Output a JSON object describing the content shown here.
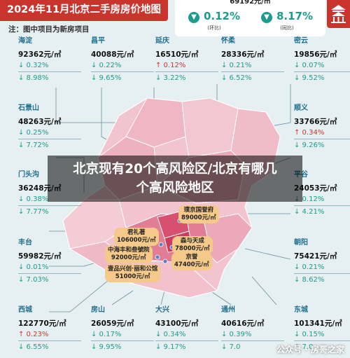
{
  "header": {
    "title": "2024年11月北京二手房房价地图",
    "note": "注：图中项目为新房项目"
  },
  "summary": {
    "price_partial": "69192元/㎡",
    "mom": {
      "value": "0.12%",
      "caption": "(环比)"
    },
    "yoy": {
      "value": "8.17%",
      "caption": "(同比)"
    }
  },
  "districts": {
    "haidian": {
      "name": "海淀",
      "price": "92362元/㎡",
      "mom": "↓ 0.32%",
      "yoy": "↓ 8.98%"
    },
    "changping": {
      "name": "昌平",
      "price": "40088元/㎡",
      "mom": "↓ 0.22%",
      "yoy": "↓ 9.65%"
    },
    "yanqing": {
      "name": "延庆",
      "price": "16510元/㎡",
      "mom": "↑ 0.12%",
      "yoy": "↓ 3.22%"
    },
    "huairou": {
      "name": "怀柔",
      "price": "28336元/㎡",
      "mom": "↓ 0.21%",
      "yoy": "↓ 6.52%"
    },
    "miyun": {
      "name": "密云",
      "price": "19856元/㎡",
      "mom": "↓ 0.07%",
      "yoy": "↓ 9.52%"
    },
    "shijingshan": {
      "name": "石景山",
      "price": "48263元/㎡",
      "mom": "↓ 0.25%",
      "yoy": "↓ 7.72%"
    },
    "shunyi": {
      "name": "顺义",
      "price": "33766元/㎡",
      "mom": "↑ 0.34%",
      "yoy": "↓ 9.26%"
    },
    "mentougou": {
      "name": "门头沟",
      "price": "36248元/㎡",
      "mom": "↓ 0.38%",
      "yoy": "↓ 7.77%"
    },
    "pinggu": {
      "name": "平谷",
      "price": "24053元/㎡",
      "mom": "↓ 0.12%",
      "yoy": "↓ 4.21%"
    },
    "fengtai": {
      "name": "丰台",
      "price": "59982元/㎡",
      "mom": "↓ 0.01%",
      "yoy": "↓ 7.03%"
    },
    "chaoyang": {
      "name": "朝阳",
      "price": "75421元/㎡",
      "mom": "↓ 0.21%",
      "yoy": "↓ 8.62%"
    },
    "xicheng": {
      "name": "西城",
      "price": "122770元/㎡",
      "mom": "↑ 0.23%",
      "yoy": "↓ 6.55%"
    },
    "fangshan": {
      "name": "房山",
      "price": "26059元/㎡",
      "mom": "↓ 0.17%",
      "yoy": "↓ 9.95%"
    },
    "daxing": {
      "name": "大兴",
      "price": "43100元/㎡",
      "mom": "↓ 0.34%",
      "yoy": "↓ 9.17%"
    },
    "tongzhou": {
      "name": "通州",
      "price": "40616元/㎡",
      "mom": "↓ 0.39%",
      "yoy": "↓ 7.0"
    },
    "dongcheng": {
      "name": "东城",
      "price": "101341元/㎡",
      "mom": "↓ 0.15%",
      "yoy": "↓ 7.0"
    }
  },
  "hotspots": [
    {
      "name": "璞京国誉府",
      "price": "89000元/㎡"
    },
    {
      "name": "君礼著",
      "price": "106000元/㎡"
    },
    {
      "name": "中海丰和叁號院",
      "price": "92000元/㎡"
    },
    {
      "name": "森与天成",
      "price": "78000元/㎡"
    },
    {
      "name": "京誉",
      "price": "47400元/㎡"
    },
    {
      "name": "壹品兴创·丽和公馆",
      "price": "51000元/㎡"
    }
  ],
  "banner": {
    "line1": "北京现有20个高风险区/北京有哪几",
    "line2": "个高风险地区"
  },
  "watermark": "公众号 · 房哥之家",
  "colors": {
    "brand_red": "#c9342d",
    "teal": "#1b9c8c",
    "up_red": "#d0342c",
    "label": "#1f6f8f"
  }
}
